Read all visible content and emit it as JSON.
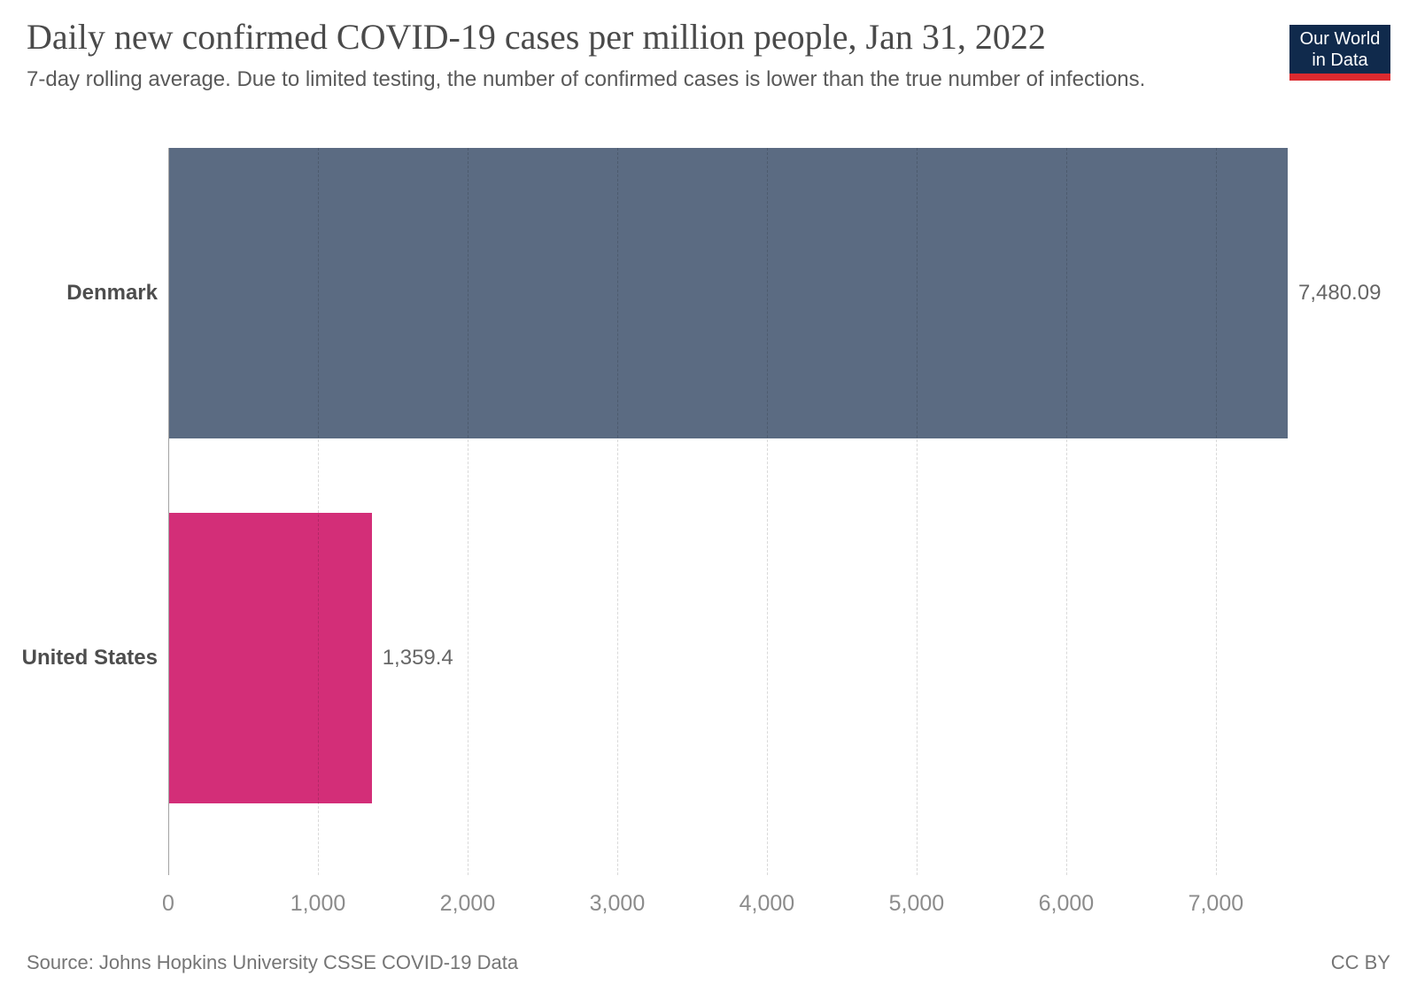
{
  "header": {
    "title": "Daily new confirmed COVID-19 cases per million people, Jan 31, 2022",
    "subtitle": "7-day rolling average. Due to limited testing, the number of confirmed cases is lower than the true number of infections.",
    "logo": {
      "line1": "Our World",
      "line2": "in Data",
      "bg_color": "#102a4c",
      "accent_color": "#dc2a2f"
    }
  },
  "footer": {
    "source": "Source: Johns Hopkins University CSSE COVID-19 Data",
    "license": "CC BY"
  },
  "chart_data": {
    "type": "bar",
    "orientation": "horizontal",
    "title": "Daily new confirmed COVID-19 cases per million people, Jan 31, 2022",
    "subtitle": "7-day rolling average. Due to limited testing, the number of confirmed cases is lower than the true number of infections.",
    "categories": [
      "Denmark",
      "United States"
    ],
    "values": [
      7480.09,
      1359.4
    ],
    "value_labels": [
      "7,480.09",
      "1,359.4"
    ],
    "bar_colors": [
      "#5b6b82",
      "#d32e78"
    ],
    "xlabel": "",
    "ylabel": "",
    "xlim": [
      0,
      7480.09
    ],
    "x_ticks": [
      0,
      1000,
      2000,
      3000,
      4000,
      5000,
      6000,
      7000
    ],
    "x_tick_labels": [
      "0",
      "1,000",
      "2,000",
      "3,000",
      "4,000",
      "5,000",
      "6,000",
      "7,000"
    ],
    "grid": "vertical-dashed",
    "legend": "none"
  }
}
